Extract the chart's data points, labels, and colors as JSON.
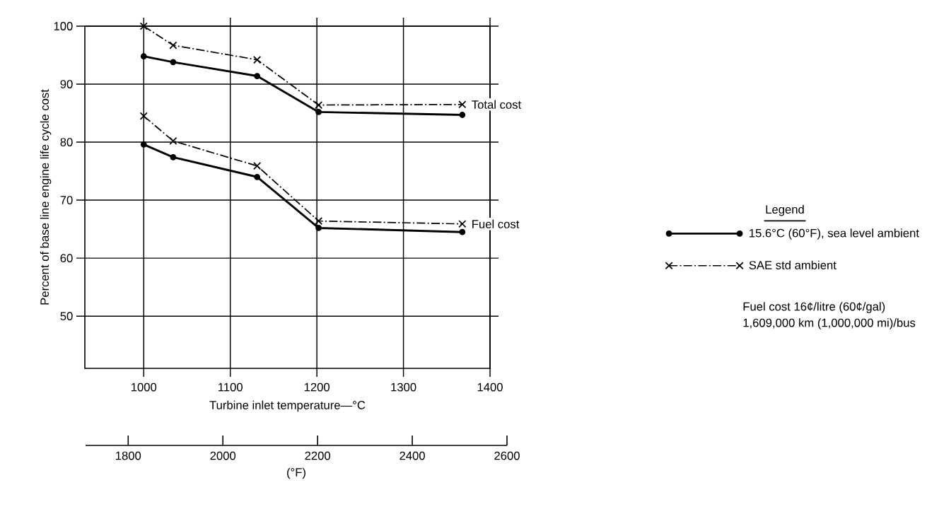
{
  "chart_data": {
    "type": "line",
    "xlabel": "Turbine inlet temperature—°C",
    "ylabel": "Percent of base line engine life cycle cost",
    "x2label": "(°F)",
    "legend_title": "Legend",
    "x": [
      1000,
      1034,
      1131,
      1202,
      1368
    ],
    "series": [
      {
        "name": "15.6°C (60°F), sea level ambient",
        "color": "#000000",
        "marker": "circle",
        "line_style": "solid",
        "values": [
          94.8,
          93.8,
          91.4,
          85.2,
          84.7
        ]
      },
      {
        "name": "SAE std ambient",
        "color": "#000000",
        "marker": "cross",
        "line_style": "dashed",
        "values": [
          100,
          96.7,
          94.2,
          86.4,
          86.5
        ]
      },
      {
        "color": "#000000",
        "marker": "circle",
        "line_style": "solid",
        "values": [
          79.6,
          77.4,
          74.0,
          65.2,
          64.5
        ]
      },
      {
        "color": "#000000",
        "marker": "cross",
        "line_style": "dashed",
        "values": [
          84.5,
          80.2,
          75.9,
          66.4,
          65.9
        ]
      }
    ],
    "xlim": [
      932,
      1400
    ],
    "xticks": [
      1000,
      1100,
      1200,
      1300,
      1400
    ],
    "ylim": [
      41,
      100
    ],
    "yticks": [
      50,
      60,
      70,
      80,
      90,
      100
    ],
    "x2lim": [
      1710,
      2600
    ],
    "x2ticks": [
      1800,
      2000,
      2200,
      2400,
      2600
    ],
    "grid": true,
    "legend": "right",
    "annotations": [
      {
        "text": "Total cost",
        "x": 1368,
        "y": 86.5
      },
      {
        "text": "Fuel cost",
        "x": 1368,
        "y": 65.9
      },
      "Fuel cost 16¢/litre (60¢/gal)",
      "1,609,000 km (1,000,000 mi)/bus"
    ]
  }
}
